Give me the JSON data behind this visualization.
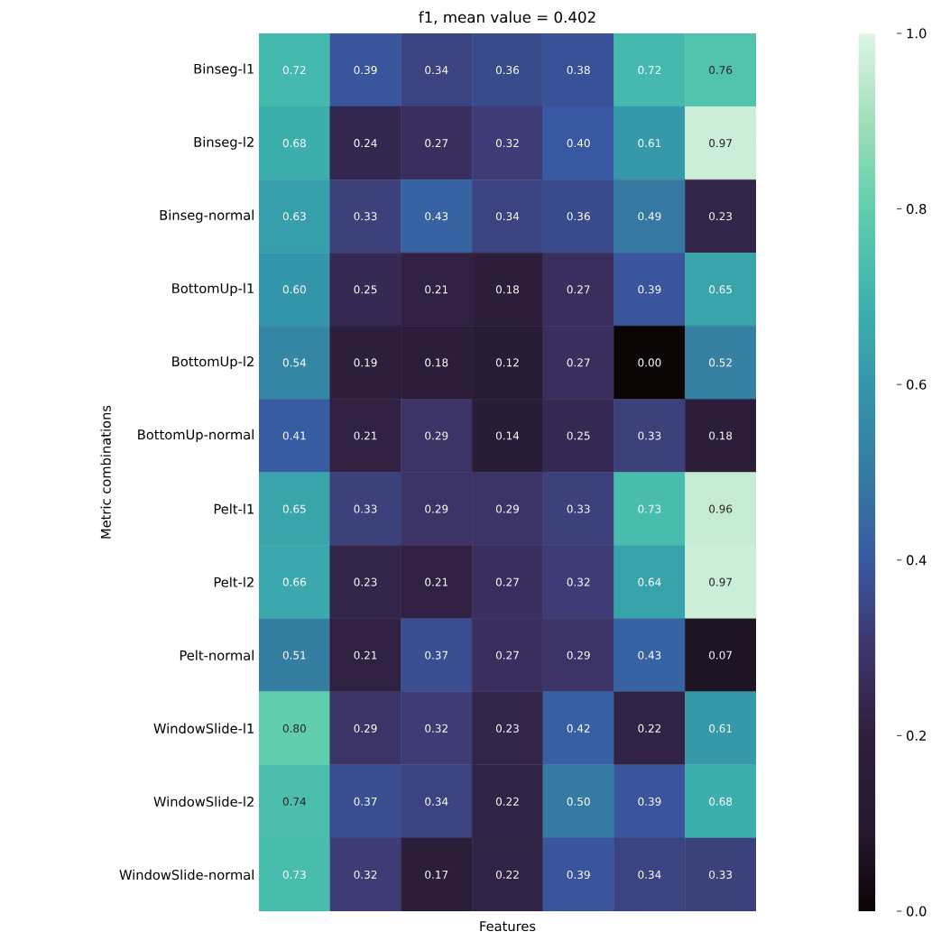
{
  "chart_data": {
    "type": "heatmap",
    "title": "f1, mean value = 0.402",
    "xlabel": "Features",
    "ylabel": "Metric combinations",
    "categories": [
      null,
      null,
      null,
      null,
      null,
      null,
      null
    ],
    "y_categories": [
      "Binseg-l1",
      "Binseg-l2",
      "Binseg-normal",
      "BottomUp-l1",
      "BottomUp-l2",
      "BottomUp-normal",
      "Pelt-l1",
      "Pelt-l2",
      "Pelt-normal",
      "WindowSlide-l1",
      "WindowSlide-l2",
      "WindowSlide-normal"
    ],
    "cells": [
      [
        0.72,
        0.39,
        0.34,
        0.36,
        0.38,
        0.72,
        0.76
      ],
      [
        0.68,
        0.24,
        0.27,
        0.32,
        0.4,
        0.61,
        0.97
      ],
      [
        0.63,
        0.33,
        0.43,
        0.34,
        0.36,
        0.49,
        0.23
      ],
      [
        0.6,
        0.25,
        0.21,
        0.18,
        0.27,
        0.39,
        0.65
      ],
      [
        0.54,
        0.19,
        0.18,
        0.12,
        0.27,
        0.0,
        0.52
      ],
      [
        0.41,
        0.21,
        0.29,
        0.14,
        0.25,
        0.33,
        0.18
      ],
      [
        0.65,
        0.33,
        0.29,
        0.29,
        0.33,
        0.73,
        0.96
      ],
      [
        0.66,
        0.23,
        0.21,
        0.27,
        0.32,
        0.64,
        0.97
      ],
      [
        0.51,
        0.21,
        0.37,
        0.27,
        0.29,
        0.43,
        0.07
      ],
      [
        0.8,
        0.29,
        0.32,
        0.23,
        0.42,
        0.22,
        0.61
      ],
      [
        0.74,
        0.37,
        0.34,
        0.22,
        0.5,
        0.39,
        0.68
      ],
      [
        0.73,
        0.32,
        0.17,
        0.22,
        0.39,
        0.34,
        0.33
      ]
    ],
    "cell_labels": [
      [
        "0.72",
        "0.39",
        "0.34",
        "0.36",
        "0.38",
        "0.72",
        "0.76"
      ],
      [
        "0.68",
        "0.24",
        "0.27",
        "0.32",
        "0.40",
        "0.61",
        "0.97"
      ],
      [
        "0.63",
        "0.33",
        "0.43",
        "0.34",
        "0.36",
        "0.49",
        "0.23"
      ],
      [
        "0.60",
        "0.25",
        "0.21",
        "0.18",
        "0.27",
        "0.39",
        "0.65"
      ],
      [
        "0.54",
        "0.19",
        "0.18",
        "0.12",
        "0.27",
        "0.00",
        "0.52"
      ],
      [
        "0.41",
        "0.21",
        "0.29",
        "0.14",
        "0.25",
        "0.33",
        "0.18"
      ],
      [
        "0.65",
        "0.33",
        "0.29",
        "0.29",
        "0.33",
        "0.73",
        "0.96"
      ],
      [
        "0.66",
        "0.23",
        "0.21",
        "0.27",
        "0.32",
        "0.64",
        "0.97"
      ],
      [
        "0.51",
        "0.21",
        "0.37",
        "0.27",
        "0.29",
        "0.43",
        "0.07"
      ],
      [
        "0.80",
        "0.29",
        "0.32",
        "0.23",
        "0.42",
        "0.22",
        "0.61"
      ],
      [
        "0.74",
        "0.37",
        "0.34",
        "0.22",
        "0.50",
        "0.39",
        "0.68"
      ],
      [
        "0.73",
        "0.32",
        "0.17",
        "0.22",
        "0.39",
        "0.34",
        "0.33"
      ]
    ],
    "clim": [
      0,
      1
    ],
    "cticks": [
      {
        "value": 0,
        "label": "0.0"
      },
      0.2,
      0.4,
      0.6,
      0.8,
      {
        "value": 1,
        "label": "1.0"
      }
    ]
  }
}
